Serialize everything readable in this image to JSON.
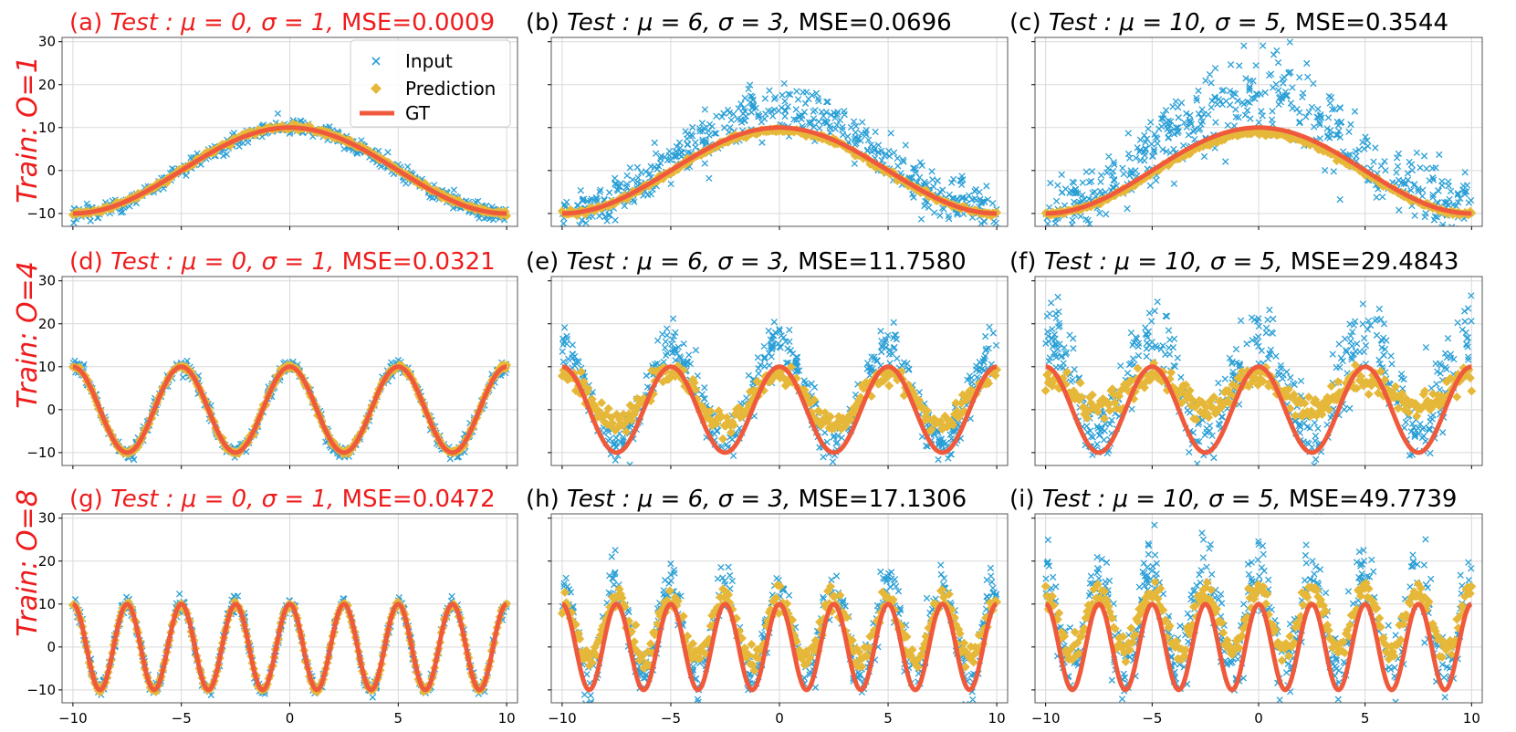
{
  "chart_data": {
    "type": "scatter",
    "figure_description_series": [
      "Input",
      "Prediction",
      "GT"
    ],
    "colors": {
      "input": "#2a9fd6",
      "prediction": "#e6b83a",
      "gt": "#f05a3c",
      "highlight_title": "#ee1c1c",
      "normal_title": "#000000",
      "grid": "#d9d9d9"
    },
    "xlim": [
      -10.5,
      10.5
    ],
    "ylim": [
      -13,
      31
    ],
    "xticks": [
      -10,
      -5,
      0,
      5,
      10
    ],
    "yticks": [
      -10,
      0,
      10,
      20,
      30
    ],
    "row_labels": [
      "Train: O=1",
      "Train: O=4",
      "Train: O=8"
    ],
    "legend": {
      "location": "top-right",
      "entries": [
        "Input",
        "Prediction",
        "GT"
      ]
    },
    "panels": [
      {
        "tag": "(a)",
        "row": 0,
        "col": 0,
        "frequency_O": 1,
        "mu": 0,
        "sigma": 1,
        "mse": "0.0009",
        "title_math": "Test : μ = 0, σ = 1,",
        "mse_text": "MSE=0.0009",
        "highlight": true,
        "pred_offset": 0.2,
        "pred_shape": "clean",
        "noise_scale": 1.0
      },
      {
        "tag": "(b)",
        "row": 0,
        "col": 1,
        "frequency_O": 1,
        "mu": 6,
        "sigma": 3,
        "mse": "0.0696",
        "title_math": "Test : μ = 6, σ = 3,",
        "mse_text": "MSE=0.0696",
        "highlight": false,
        "pred_offset": -0.6,
        "pred_shape": "clean",
        "noise_scale": 1.0
      },
      {
        "tag": "(c)",
        "row": 0,
        "col": 2,
        "frequency_O": 1,
        "mu": 10,
        "sigma": 5,
        "mse": "0.3544",
        "title_math": "Test : μ = 10, σ = 5,",
        "mse_text": "MSE=0.3544",
        "highlight": false,
        "pred_offset": -1.2,
        "pred_shape": "clean",
        "noise_scale": 1.0
      },
      {
        "tag": "(d)",
        "row": 1,
        "col": 0,
        "frequency_O": 4,
        "mu": 0,
        "sigma": 1,
        "mse": "0.0321",
        "title_math": "Test : μ = 0, σ = 1,",
        "mse_text": "MSE=0.0321",
        "highlight": true,
        "pred_offset": 0.0,
        "pred_shape": "clean",
        "noise_scale": 1.0
      },
      {
        "tag": "(e)",
        "row": 1,
        "col": 1,
        "frequency_O": 4,
        "mu": 6,
        "sigma": 3,
        "mse": "11.7580",
        "title_math": "Test : μ = 6, σ = 3,",
        "mse_text": "MSE=11.7580",
        "highlight": false,
        "pred_offset": 2.5,
        "pred_shape": "wobbly",
        "noise_scale": 1.0
      },
      {
        "tag": "(f)",
        "row": 1,
        "col": 2,
        "frequency_O": 4,
        "mu": 10,
        "sigma": 5,
        "mse": "29.4843",
        "title_math": "Test : μ = 10, σ = 5,",
        "mse_text": "MSE=29.4843",
        "highlight": false,
        "pred_offset": 4.0,
        "pred_shape": "flattened",
        "noise_scale": 1.0
      },
      {
        "tag": "(g)",
        "row": 2,
        "col": 0,
        "frequency_O": 8,
        "mu": 0,
        "sigma": 1,
        "mse": "0.0472",
        "title_math": "Test : μ = 0, σ = 1,",
        "mse_text": "MSE=0.0472",
        "highlight": true,
        "pred_offset": 0.0,
        "pred_shape": "clean",
        "noise_scale": 1.0
      },
      {
        "tag": "(h)",
        "row": 2,
        "col": 1,
        "frequency_O": 8,
        "mu": 6,
        "sigma": 3,
        "mse": "17.1306",
        "title_math": "Test : μ = 6, σ = 3,",
        "mse_text": "MSE=17.1306",
        "highlight": false,
        "pred_offset": 4.0,
        "pred_shape": "shifted",
        "noise_scale": 1.0
      },
      {
        "tag": "(i)",
        "row": 2,
        "col": 2,
        "frequency_O": 8,
        "mu": 10,
        "sigma": 5,
        "mse": "49.7739",
        "title_math": "Test : μ = 10, σ = 5,",
        "mse_text": "MSE=49.7739",
        "highlight": false,
        "pred_offset": 6.0,
        "pred_shape": "shifted",
        "noise_scale": 1.0
      }
    ],
    "gt_function": "10*cos(O*pi*x/10)",
    "x_range": [
      -10,
      10
    ],
    "points_per_panel": 500
  }
}
